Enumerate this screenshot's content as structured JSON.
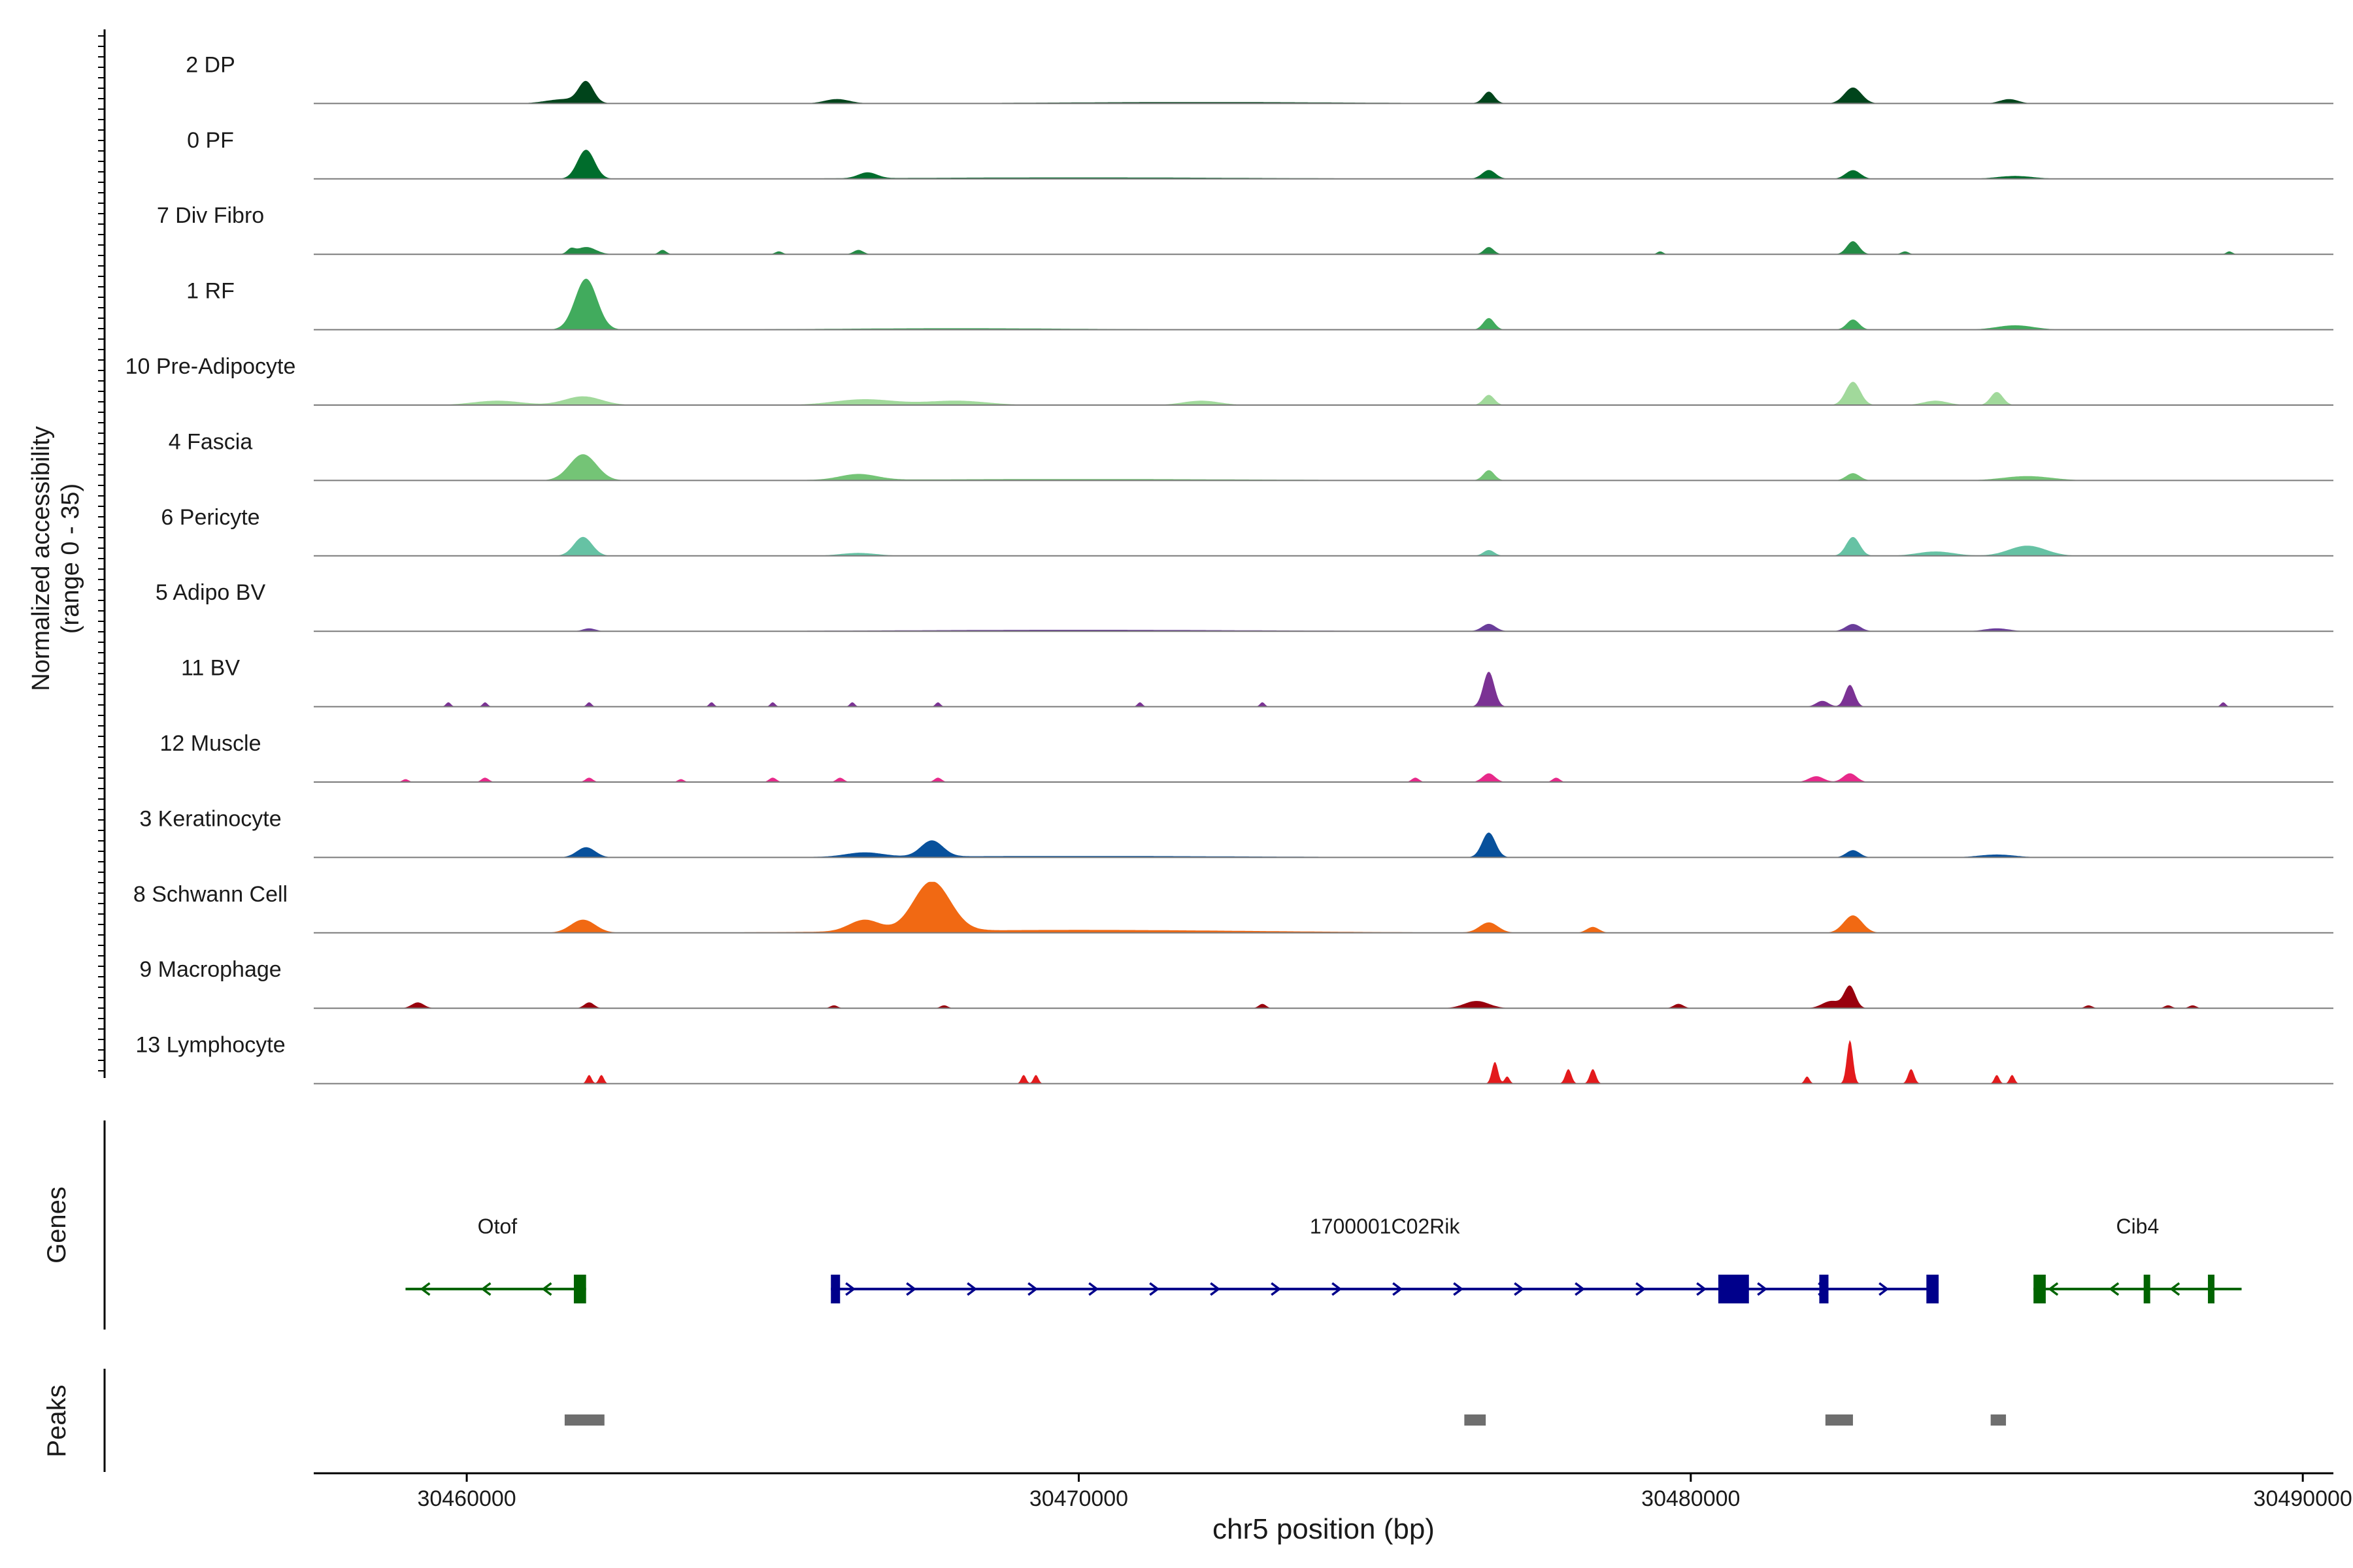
{
  "chart_data": {
    "type": "area",
    "title": "",
    "ylabel_line1": "Normalized accessibility",
    "ylabel_line2": "(range 0 - 35)",
    "xlabel": "chr5 position (bp)",
    "xlim": [
      30457500,
      30490500
    ],
    "ylim": [
      0,
      35
    ],
    "x_ticks": [
      30460000,
      30470000,
      30480000,
      30490000
    ],
    "x_tick_labels": [
      "30460000",
      "30470000",
      "30480000",
      "30490000"
    ],
    "tracks": [
      {
        "name": "2 DP",
        "color": "#00441b",
        "peaks": [
          [
            30461950,
            14,
            120
          ],
          [
            30461600,
            3,
            300
          ],
          [
            30466050,
            3,
            200
          ],
          [
            30476700,
            8,
            90
          ],
          [
            30482650,
            11,
            140
          ],
          [
            30485200,
            3,
            150
          ],
          [
            30472000,
            1,
            2500
          ]
        ]
      },
      {
        "name": "0 PF",
        "color": "#006d2c",
        "peaks": [
          [
            30461950,
            20,
            140
          ],
          [
            30466550,
            4,
            150
          ],
          [
            30476700,
            6,
            110
          ],
          [
            30482650,
            6,
            120
          ],
          [
            30485300,
            2,
            300
          ],
          [
            30470000,
            1,
            3000
          ]
        ]
      },
      {
        "name": "7 Div Fibro",
        "color": "#238b45",
        "peaks": [
          [
            30461950,
            5,
            160
          ],
          [
            30461700,
            3,
            60
          ],
          [
            30463200,
            3,
            60
          ],
          [
            30465100,
            2,
            60
          ],
          [
            30466400,
            3,
            80
          ],
          [
            30476700,
            5,
            80
          ],
          [
            30482650,
            9,
            100
          ],
          [
            30488800,
            2,
            50
          ],
          [
            30483500,
            2,
            60
          ],
          [
            30479500,
            2,
            50
          ]
        ]
      },
      {
        "name": "1 RF",
        "color": "#41ab5d",
        "peaks": [
          [
            30461950,
            35,
            180
          ],
          [
            30476700,
            8,
            90
          ],
          [
            30482650,
            7,
            100
          ],
          [
            30485300,
            3,
            300
          ],
          [
            30468000,
            1,
            2000
          ]
        ]
      },
      {
        "name": "10 Pre-Adipocyte",
        "color": "#a1d99b",
        "peaks": [
          [
            30461900,
            6,
            300
          ],
          [
            30460500,
            3,
            400
          ],
          [
            30466500,
            4,
            500
          ],
          [
            30468000,
            3,
            500
          ],
          [
            30472000,
            3,
            300
          ],
          [
            30476700,
            7,
            90
          ],
          [
            30482650,
            16,
            120
          ],
          [
            30485000,
            9,
            100
          ],
          [
            30484000,
            3,
            200
          ]
        ]
      },
      {
        "name": "4 Fascia",
        "color": "#74c476",
        "peaks": [
          [
            30461900,
            18,
            220
          ],
          [
            30466400,
            4,
            300
          ],
          [
            30476700,
            7,
            90
          ],
          [
            30482650,
            5,
            110
          ],
          [
            30485500,
            3,
            400
          ],
          [
            30470000,
            1,
            3000
          ]
        ]
      },
      {
        "name": "6 Pericyte",
        "color": "#66c2a4",
        "peaks": [
          [
            30461900,
            13,
            150
          ],
          [
            30466400,
            2,
            300
          ],
          [
            30476700,
            4,
            90
          ],
          [
            30482650,
            13,
            110
          ],
          [
            30485500,
            7,
            300
          ],
          [
            30484000,
            3,
            300
          ]
        ]
      },
      {
        "name": "5 Adipo BV",
        "color": "#6a3d9a",
        "peaks": [
          [
            30476700,
            5,
            110
          ],
          [
            30482650,
            5,
            120
          ],
          [
            30462000,
            2,
            100
          ],
          [
            30485000,
            2,
            200
          ],
          [
            30470000,
            1,
            3000
          ]
        ]
      },
      {
        "name": "11 BV",
        "color": "#7b3294",
        "peaks": [
          [
            30476700,
            24,
            90
          ],
          [
            30482600,
            15,
            80
          ],
          [
            30482150,
            4,
            100
          ],
          [
            30459700,
            3,
            40
          ],
          [
            30460300,
            3,
            40
          ],
          [
            30462000,
            3,
            40
          ],
          [
            30464000,
            3,
            40
          ],
          [
            30465000,
            3,
            40
          ],
          [
            30466300,
            3,
            40
          ],
          [
            30467700,
            3,
            40
          ],
          [
            30471000,
            3,
            40
          ],
          [
            30473000,
            3,
            40
          ],
          [
            30488700,
            3,
            40
          ]
        ]
      },
      {
        "name": "12 Muscle",
        "color": "#e7298a",
        "peaks": [
          [
            30476700,
            6,
            100
          ],
          [
            30482600,
            6,
            110
          ],
          [
            30482050,
            4,
            120
          ],
          [
            30462000,
            3,
            60
          ],
          [
            30460300,
            3,
            60
          ],
          [
            30465000,
            3,
            60
          ],
          [
            30466100,
            3,
            60
          ],
          [
            30467700,
            3,
            60
          ],
          [
            30475500,
            3,
            60
          ],
          [
            30477800,
            3,
            60
          ],
          [
            30459000,
            2,
            50
          ],
          [
            30463500,
            2,
            50
          ]
        ]
      },
      {
        "name": "3 Keratinocyte",
        "color": "#08519c",
        "peaks": [
          [
            30461950,
            7,
            150
          ],
          [
            30467600,
            11,
            180
          ],
          [
            30476700,
            17,
            110
          ],
          [
            30482650,
            5,
            110
          ],
          [
            30466500,
            3,
            300
          ],
          [
            30470000,
            1,
            3000
          ],
          [
            30485000,
            2,
            300
          ]
        ]
      },
      {
        "name": "8 Schwann Cell",
        "color": "#f16913",
        "peaks": [
          [
            30467600,
            34,
            300
          ],
          [
            30466500,
            8,
            250
          ],
          [
            30461900,
            9,
            200
          ],
          [
            30476700,
            7,
            150
          ],
          [
            30482650,
            12,
            150
          ],
          [
            30478400,
            4,
            100
          ],
          [
            30470000,
            2,
            3000
          ]
        ]
      },
      {
        "name": "9 Macrophage",
        "color": "#99000d",
        "peaks": [
          [
            30482600,
            15,
            90
          ],
          [
            30482300,
            5,
            150
          ],
          [
            30476500,
            5,
            200
          ],
          [
            30459200,
            4,
            100
          ],
          [
            30462000,
            4,
            80
          ],
          [
            30479800,
            3,
            80
          ],
          [
            30473000,
            3,
            60
          ],
          [
            30466000,
            2,
            60
          ],
          [
            30467800,
            2,
            60
          ],
          [
            30486500,
            2,
            60
          ],
          [
            30487800,
            2,
            60
          ],
          [
            30488200,
            2,
            60
          ]
        ]
      },
      {
        "name": "13 Lymphocyte",
        "color": "#e31a1c",
        "peaks": [
          [
            30482600,
            30,
            50
          ],
          [
            30476800,
            15,
            50
          ],
          [
            30483600,
            10,
            50
          ],
          [
            30478000,
            10,
            50
          ],
          [
            30478400,
            10,
            50
          ],
          [
            30481900,
            5,
            40
          ],
          [
            30462000,
            6,
            40
          ],
          [
            30462200,
            6,
            40
          ],
          [
            30469100,
            6,
            40
          ],
          [
            30469300,
            6,
            40
          ],
          [
            30485000,
            6,
            40
          ],
          [
            30485250,
            6,
            40
          ],
          [
            30477000,
            5,
            40
          ]
        ]
      }
    ],
    "genes_title": "Genes",
    "genes": [
      {
        "name": "Otof",
        "strand": "-",
        "color": "#006400",
        "start": 30459000,
        "end": 30461950,
        "exons": [
          [
            30461750,
            30461950
          ]
        ],
        "label_pos": 30460500
      },
      {
        "name": "1700001C02Rik",
        "strand": "+",
        "color": "#00008b",
        "start": 30465950,
        "end": 30484000,
        "exons": [
          [
            30465950,
            30466100
          ],
          [
            30480450,
            30480950
          ],
          [
            30482100,
            30482250
          ],
          [
            30483850,
            30484050
          ]
        ],
        "label_pos": 30475000
      },
      {
        "name": "Cib4",
        "strand": "-",
        "color": "#006400",
        "start": 30485600,
        "end": 30489000,
        "exons": [
          [
            30485600,
            30485800
          ],
          [
            30487400,
            30487500
          ],
          [
            30488450,
            30488550
          ]
        ],
        "label_pos": 30487300
      }
    ],
    "peaks_title": "Peaks",
    "peak_regions": [
      [
        30461600,
        30462250
      ],
      [
        30476300,
        30476650
      ],
      [
        30482200,
        30482650
      ],
      [
        30484900,
        30485150
      ]
    ],
    "peak_color": "#6e6e6e"
  }
}
